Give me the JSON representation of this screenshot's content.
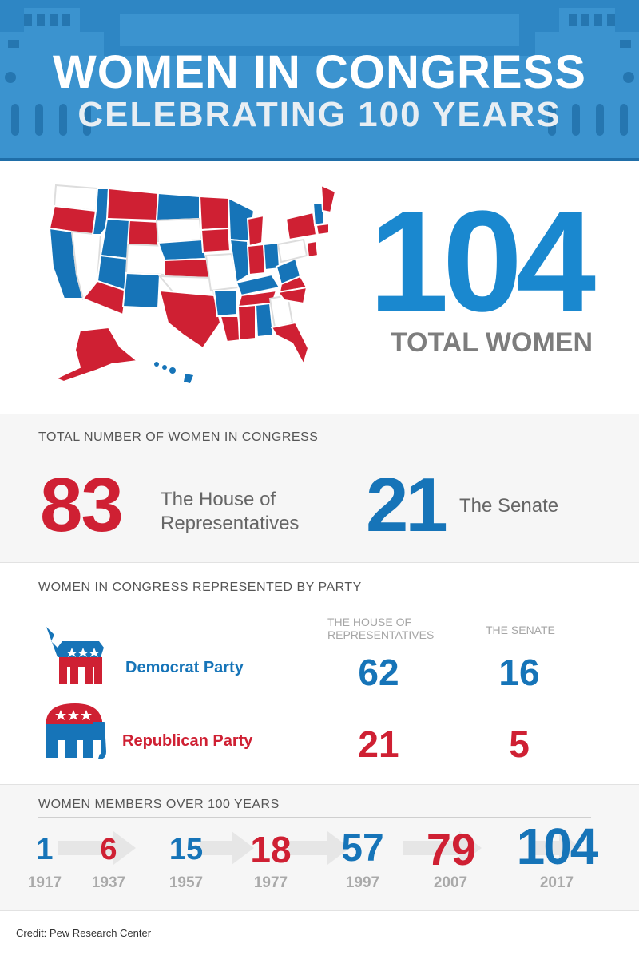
{
  "header": {
    "title": "WOMEN IN CONGRESS",
    "subtitle": "CELEBRATING 100 YEARS"
  },
  "hero": {
    "total": "104",
    "total_label": "TOTAL WOMEN",
    "map_icon": "us-map-icon"
  },
  "totals_section": {
    "heading": "TOTAL NUMBER OF WOMEN IN CONGRESS",
    "house_number": "83",
    "house_label_line1": "The House of",
    "house_label_line2": "Representatives",
    "senate_number": "21",
    "senate_label": "The Senate"
  },
  "party_section": {
    "heading": "WOMEN IN CONGRESS REPRESENTED BY PARTY",
    "col_house_line1": "THE HOUSE OF",
    "col_house_line2": "REPRESENTATIVES",
    "col_senate": "THE SENATE",
    "parties": [
      {
        "name": "Democrat Party",
        "icon": "donkey-icon",
        "house": "62",
        "senate": "16"
      },
      {
        "name": "Republican Party",
        "icon": "elephant-icon",
        "house": "21",
        "senate": "5"
      }
    ]
  },
  "timeline": {
    "heading": "WOMEN MEMBERS OVER 100 YEARS",
    "points": [
      {
        "value": "1",
        "year": "1917"
      },
      {
        "value": "6",
        "year": "1937"
      },
      {
        "value": "15",
        "year": "1957"
      },
      {
        "value": "18",
        "year": "1977"
      },
      {
        "value": "57",
        "year": "1997"
      },
      {
        "value": "79",
        "year": "2007"
      },
      {
        "value": "104",
        "year": "2017"
      }
    ]
  },
  "credit": "Credit: Pew Research Center",
  "colors": {
    "democrat_blue": "#1674b8",
    "republican_red": "#cf2033",
    "header_blue": "#2e86c4"
  }
}
